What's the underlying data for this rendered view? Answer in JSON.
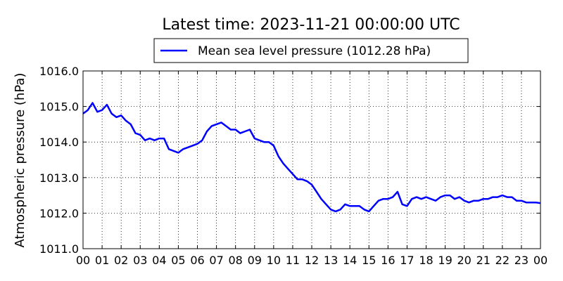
{
  "chart_data": {
    "type": "line",
    "title": "Latest time: 2023-11-21 00:00:00 UTC",
    "xlabel": "",
    "ylabel": "Atmospheric pressure (hPa)",
    "ylim": [
      1011.0,
      1016.0
    ],
    "xlim": [
      0,
      24
    ],
    "grid": true,
    "legend_position": "top-center",
    "x_tick_labels": [
      "00",
      "01",
      "02",
      "03",
      "04",
      "05",
      "06",
      "07",
      "08",
      "09",
      "10",
      "11",
      "12",
      "13",
      "14",
      "15",
      "16",
      "17",
      "18",
      "19",
      "20",
      "21",
      "22",
      "23",
      "00"
    ],
    "y_tick_labels": [
      "1011.0",
      "1012.0",
      "1013.0",
      "1014.0",
      "1015.0",
      "1016.0"
    ],
    "series": [
      {
        "name": "Mean sea level pressure (1012.28 hPa)",
        "color": "#0000ff",
        "x": [
          0,
          0.25,
          0.5,
          0.75,
          1,
          1.25,
          1.5,
          1.75,
          2,
          2.25,
          2.5,
          2.75,
          3,
          3.25,
          3.5,
          3.75,
          4,
          4.25,
          4.5,
          4.75,
          5,
          5.25,
          5.5,
          5.75,
          6,
          6.25,
          6.5,
          6.75,
          7,
          7.25,
          7.5,
          7.75,
          8,
          8.25,
          8.5,
          8.75,
          9,
          9.25,
          9.5,
          9.75,
          10,
          10.25,
          10.5,
          10.75,
          11,
          11.25,
          11.5,
          11.75,
          12,
          12.25,
          12.5,
          12.75,
          13,
          13.25,
          13.5,
          13.75,
          14,
          14.25,
          14.5,
          14.75,
          15,
          15.25,
          15.5,
          15.75,
          16,
          16.25,
          16.5,
          16.75,
          17,
          17.25,
          17.5,
          17.75,
          18,
          18.25,
          18.5,
          18.75,
          19,
          19.25,
          19.5,
          19.75,
          20,
          20.25,
          20.5,
          20.75,
          21,
          21.25,
          21.5,
          21.75,
          22,
          22.25,
          22.5,
          22.75,
          23,
          23.25,
          23.5,
          23.75,
          24
        ],
        "values": [
          1014.8,
          1014.9,
          1015.1,
          1014.85,
          1014.9,
          1015.05,
          1014.8,
          1014.7,
          1014.75,
          1014.6,
          1014.5,
          1014.25,
          1014.2,
          1014.05,
          1014.1,
          1014.05,
          1014.1,
          1014.1,
          1013.8,
          1013.75,
          1013.7,
          1013.8,
          1013.85,
          1013.9,
          1013.95,
          1014.05,
          1014.3,
          1014.45,
          1014.5,
          1014.55,
          1014.45,
          1014.35,
          1014.35,
          1014.25,
          1014.3,
          1014.35,
          1014.1,
          1014.05,
          1014.0,
          1014.0,
          1013.9,
          1013.6,
          1013.4,
          1013.25,
          1013.1,
          1012.95,
          1012.95,
          1012.9,
          1012.8,
          1012.6,
          1012.4,
          1012.25,
          1012.1,
          1012.05,
          1012.1,
          1012.25,
          1012.2,
          1012.2,
          1012.2,
          1012.1,
          1012.05,
          1012.2,
          1012.35,
          1012.4,
          1012.4,
          1012.45,
          1012.6,
          1012.25,
          1012.2,
          1012.4,
          1012.45,
          1012.4,
          1012.45,
          1012.4,
          1012.35,
          1012.45,
          1012.5,
          1012.5,
          1012.4,
          1012.45,
          1012.35,
          1012.3,
          1012.35,
          1012.35,
          1012.4,
          1012.4,
          1012.45,
          1012.45,
          1012.5,
          1012.45,
          1012.45,
          1012.35,
          1012.35,
          1012.3,
          1012.3,
          1012.3,
          1012.28
        ]
      }
    ]
  }
}
